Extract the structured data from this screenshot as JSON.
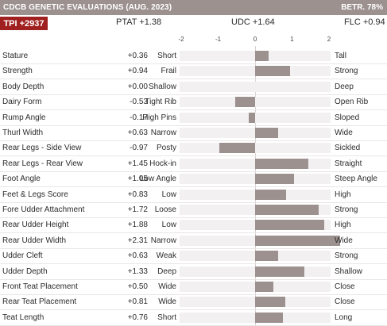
{
  "header": {
    "title": "CDCB GENETIC EVALUATIONS (AUG. 2023)",
    "reliability": "BETR. 78%"
  },
  "summary": {
    "tpi": "TPI +2937",
    "ptat": "PTAT +1.38",
    "udc": "UDC +1.64",
    "flc": "FLC +0.94"
  },
  "scale": {
    "ticks": [
      "-2",
      "-1",
      "0",
      "1",
      "2"
    ],
    "min": -2,
    "max": 2.4
  },
  "colors": {
    "header_bg": "#9c918f",
    "tpi_bg": "#a01f1f",
    "bar": "#9c918f"
  },
  "traits": [
    {
      "name": "Stature",
      "value_label": "+0.36",
      "value": 0.36,
      "low": "Short",
      "high": "Tall"
    },
    {
      "name": "Strength",
      "value_label": "+0.94",
      "value": 0.94,
      "low": "Frail",
      "high": "Strong"
    },
    {
      "name": "Body Depth",
      "value_label": "+0.00",
      "value": 0.0,
      "low": "Shallow",
      "high": "Deep"
    },
    {
      "name": "Dairy Form",
      "value_label": "-0.53",
      "value": -0.53,
      "low": "Tight Rib",
      "high": "Open Rib"
    },
    {
      "name": "Rump Angle",
      "value_label": "-0.17",
      "value": -0.17,
      "low": "High Pins",
      "high": "Sloped"
    },
    {
      "name": "Thurl Width",
      "value_label": "+0.63",
      "value": 0.63,
      "low": "Narrow",
      "high": "Wide"
    },
    {
      "name": "Rear Legs - Side View",
      "value_label": "-0.97",
      "value": -0.97,
      "low": "Posty",
      "high": "Sickled"
    },
    {
      "name": "Rear Legs - Rear View",
      "value_label": "+1.45",
      "value": 1.45,
      "low": "Hock-in",
      "high": "Straight"
    },
    {
      "name": "Foot Angle",
      "value_label": "+1.05",
      "value": 1.05,
      "low": "Low Angle",
      "high": "Steep Angle"
    },
    {
      "name": "Feet & Legs Score",
      "value_label": "+0.83",
      "value": 0.83,
      "low": "Low",
      "high": "High"
    },
    {
      "name": "Fore Udder Attachment",
      "value_label": "+1.72",
      "value": 1.72,
      "low": "Loose",
      "high": "Strong"
    },
    {
      "name": "Rear Udder Height",
      "value_label": "+1.88",
      "value": 1.88,
      "low": "Low",
      "high": "High"
    },
    {
      "name": "Rear Udder Width",
      "value_label": "+2.31",
      "value": 2.31,
      "low": "Narrow",
      "high": "Wide"
    },
    {
      "name": "Udder Cleft",
      "value_label": "+0.63",
      "value": 0.63,
      "low": "Weak",
      "high": "Strong"
    },
    {
      "name": "Udder Depth",
      "value_label": "+1.33",
      "value": 1.33,
      "low": "Deep",
      "high": "Shallow"
    },
    {
      "name": "Front Teat Placement",
      "value_label": "+0.50",
      "value": 0.5,
      "low": "Wide",
      "high": "Close"
    },
    {
      "name": "Rear Teat Placement",
      "value_label": "+0.81",
      "value": 0.81,
      "low": "Wide",
      "high": "Close"
    },
    {
      "name": "Teat Length",
      "value_label": "+0.76",
      "value": 0.76,
      "low": "Short",
      "high": "Long"
    }
  ]
}
